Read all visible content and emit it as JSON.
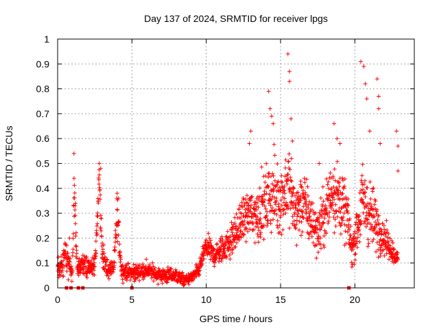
{
  "chart_data": {
    "type": "scatter",
    "title": "Day 137 of 2024, SRMTID for receiver lpgs",
    "xlabel": "GPS time / hours",
    "ylabel": "SRMTID / TECUs",
    "xlim": [
      0,
      24
    ],
    "ylim": [
      0,
      1
    ],
    "xticks": [
      0,
      5,
      10,
      15,
      20
    ],
    "xtick_labels": [
      "0",
      "5",
      "10",
      "15",
      "20"
    ],
    "yticks": [
      0,
      0.1,
      0.2,
      0.3,
      0.4,
      0.5,
      0.6,
      0.7,
      0.8,
      0.9,
      1
    ],
    "ytick_labels": [
      "0",
      "0.1",
      "0.2",
      "0.3",
      "0.4",
      "0.5",
      "0.6",
      "0.7",
      "0.8",
      "0.9",
      "1"
    ],
    "grid": true,
    "marker": "plus",
    "color": "#ff0000",
    "series": [
      {
        "name": "lpgs",
        "profile": [
          [
            0.0,
            0.09,
            0.04
          ],
          [
            0.3,
            0.08,
            0.04
          ],
          [
            0.5,
            0.15,
            0.06
          ],
          [
            0.7,
            0.1,
            0.05
          ],
          [
            1.0,
            0.07,
            0.04
          ],
          [
            1.1,
            0.42,
            0.1
          ],
          [
            1.3,
            0.08,
            0.04
          ],
          [
            1.7,
            0.1,
            0.04
          ],
          [
            2.0,
            0.08,
            0.04
          ],
          [
            2.5,
            0.08,
            0.04
          ],
          [
            2.8,
            0.44,
            0.06
          ],
          [
            3.0,
            0.15,
            0.06
          ],
          [
            3.3,
            0.07,
            0.03
          ],
          [
            3.8,
            0.08,
            0.04
          ],
          [
            4.0,
            0.3,
            0.08
          ],
          [
            4.3,
            0.07,
            0.03
          ],
          [
            5.0,
            0.06,
            0.03
          ],
          [
            6.0,
            0.07,
            0.03
          ],
          [
            7.0,
            0.05,
            0.03
          ],
          [
            8.0,
            0.05,
            0.03
          ],
          [
            8.5,
            0.03,
            0.02
          ],
          [
            9.0,
            0.04,
            0.02
          ],
          [
            9.5,
            0.07,
            0.03
          ],
          [
            10.0,
            0.17,
            0.04
          ],
          [
            10.5,
            0.13,
            0.04
          ],
          [
            11.0,
            0.15,
            0.05
          ],
          [
            11.5,
            0.18,
            0.06
          ],
          [
            12.0,
            0.22,
            0.07
          ],
          [
            12.5,
            0.28,
            0.08
          ],
          [
            13.0,
            0.3,
            0.1
          ],
          [
            13.5,
            0.3,
            0.1
          ],
          [
            14.0,
            0.34,
            0.12
          ],
          [
            14.5,
            0.38,
            0.14
          ],
          [
            15.0,
            0.35,
            0.12
          ],
          [
            15.5,
            0.42,
            0.16
          ],
          [
            16.0,
            0.3,
            0.12
          ],
          [
            16.5,
            0.35,
            0.12
          ],
          [
            17.0,
            0.28,
            0.1
          ],
          [
            17.5,
            0.22,
            0.08
          ],
          [
            18.0,
            0.3,
            0.12
          ],
          [
            18.5,
            0.4,
            0.14
          ],
          [
            19.0,
            0.35,
            0.12
          ],
          [
            19.5,
            0.28,
            0.1
          ],
          [
            19.8,
            0.15,
            0.06
          ],
          [
            20.2,
            0.25,
            0.1
          ],
          [
            20.5,
            0.35,
            0.14
          ],
          [
            21.0,
            0.3,
            0.12
          ],
          [
            21.5,
            0.25,
            0.1
          ],
          [
            22.0,
            0.2,
            0.06
          ],
          [
            22.5,
            0.15,
            0.04
          ],
          [
            22.8,
            0.12,
            0.03
          ]
        ],
        "start_hour": 0.0,
        "end_hour": 22.9,
        "step_hours": 0.012,
        "outliers": [
          [
            0.8,
            0.2
          ],
          [
            1.1,
            0.54
          ],
          [
            1.2,
            0.34
          ],
          [
            2.8,
            0.5
          ],
          [
            2.9,
            0.48
          ],
          [
            3.0,
            0.18
          ],
          [
            4.0,
            0.38
          ],
          [
            4.1,
            0.36
          ],
          [
            12.9,
            0.58
          ],
          [
            13.0,
            0.63
          ],
          [
            14.2,
            0.79
          ],
          [
            14.3,
            0.72
          ],
          [
            14.4,
            0.69
          ],
          [
            14.5,
            0.66
          ],
          [
            15.5,
            0.94
          ],
          [
            15.6,
            0.87
          ],
          [
            15.6,
            0.83
          ],
          [
            15.7,
            0.68
          ],
          [
            15.8,
            0.59
          ],
          [
            17.6,
            0.5
          ],
          [
            18.6,
            0.66
          ],
          [
            18.8,
            0.6
          ],
          [
            19.0,
            0.58
          ],
          [
            20.4,
            0.91
          ],
          [
            20.6,
            0.89
          ],
          [
            20.7,
            0.82
          ],
          [
            20.8,
            0.76
          ],
          [
            21.0,
            0.63
          ],
          [
            21.5,
            0.84
          ],
          [
            21.6,
            0.77
          ],
          [
            21.6,
            0.72
          ],
          [
            21.7,
            0.58
          ],
          [
            22.8,
            0.63
          ],
          [
            22.9,
            0.57
          ],
          [
            22.9,
            0.47
          ]
        ],
        "zero_points": [
          0.6,
          0.9,
          1.4,
          1.7,
          5.0,
          19.6
        ]
      }
    ]
  }
}
